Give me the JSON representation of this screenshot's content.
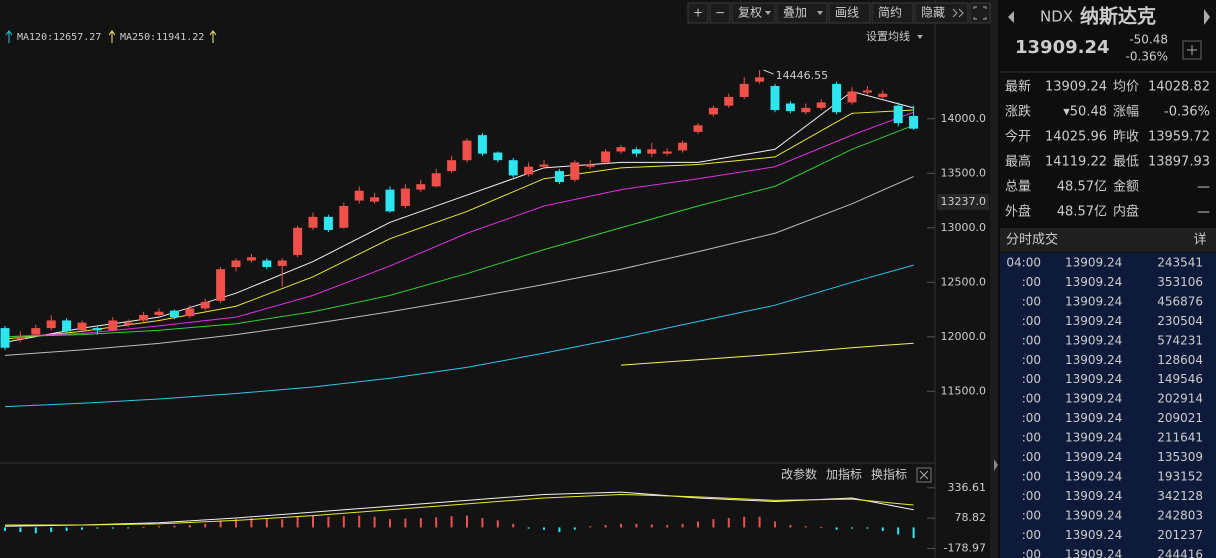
{
  "toolbar": {
    "buttons": [
      "+",
      "−",
      "复权",
      "叠加",
      "画线",
      "简约",
      "隐藏"
    ],
    "ma_settings": "设置均线"
  },
  "chart_data": {
    "type": "candlestick",
    "up_color": "#f0504a",
    "down_color": "#2ee6f0",
    "ylim": [
      10870,
      14860
    ],
    "yticks": [
      {
        "value": 14000,
        "label": "14000.0"
      },
      {
        "value": 13500,
        "label": "13500.0"
      },
      {
        "value": 13000,
        "label": "13000.0"
      },
      {
        "value": 12500,
        "label": "12500.0"
      },
      {
        "value": 12000,
        "label": "12000.0"
      },
      {
        "value": 11500,
        "label": "11500.0"
      }
    ],
    "price_marker": {
      "value": 13237,
      "label": "13237.0"
    },
    "open": [
      12080,
      11980,
      12020,
      12080,
      12150,
      12060,
      12080,
      12060,
      12110,
      12150,
      12200,
      12240,
      12190,
      12260,
      12330,
      12640,
      12700,
      12700,
      12650,
      12750,
      13000,
      13100,
      13000,
      13250,
      13240,
      13350,
      13200,
      13350,
      13380,
      13520,
      13620,
      13850,
      13690,
      13620,
      13490,
      13560,
      13520,
      13440,
      13560,
      13600,
      13700,
      13720,
      13680,
      13680,
      13710,
      13880,
      14040,
      14120,
      14200,
      14340,
      14300,
      14140,
      14060,
      14100,
      14320,
      14150,
      14240,
      14200,
      14120,
      14025.96
    ],
    "high": [
      12100,
      12050,
      12110,
      12200,
      12170,
      12150,
      12090,
      12180,
      12160,
      12230,
      12260,
      12250,
      12290,
      12350,
      12640,
      12720,
      12760,
      12720,
      12720,
      13020,
      13140,
      13120,
      13230,
      13380,
      13320,
      13380,
      13400,
      13440,
      13540,
      13660,
      13820,
      13870,
      13700,
      13640,
      13600,
      13620,
      13540,
      13620,
      13620,
      13720,
      13760,
      13740,
      13780,
      13730,
      13800,
      13960,
      14120,
      14230,
      14380,
      14446.55,
      14320,
      14160,
      14140,
      14180,
      14340,
      14290,
      14300,
      14260,
      14150,
      14119.22
    ],
    "low": [
      11880,
      11950,
      12000,
      12060,
      12030,
      12040,
      12020,
      12050,
      12090,
      12130,
      12180,
      12160,
      12170,
      12240,
      12310,
      12600,
      12680,
      12620,
      12460,
      12730,
      12980,
      12960,
      12990,
      13220,
      13220,
      13140,
      13180,
      13330,
      13370,
      13500,
      13600,
      13660,
      13600,
      13460,
      13470,
      13540,
      13400,
      13420,
      13540,
      13580,
      13680,
      13650,
      13650,
      13660,
      13690,
      13860,
      14020,
      14100,
      14180,
      14320,
      14060,
      14050,
      14040,
      14080,
      14040,
      14130,
      14220,
      14180,
      13930,
      13897.93
    ],
    "close": [
      11900,
      12000,
      12080,
      12150,
      12050,
      12130,
      12060,
      12150,
      12130,
      12200,
      12230,
      12180,
      12260,
      12320,
      12620,
      12700,
      12730,
      12640,
      12700,
      13000,
      13100,
      12980,
      13200,
      13340,
      13280,
      13150,
      13360,
      13400,
      13500,
      13620,
      13800,
      13680,
      13620,
      13480,
      13560,
      13580,
      13420,
      13600,
      13580,
      13700,
      13740,
      13680,
      13720,
      13700,
      13780,
      13940,
      14100,
      14200,
      14320,
      14380,
      14080,
      14070,
      14100,
      14150,
      14060,
      14250,
      14260,
      14230,
      13960,
      13909.24
    ],
    "ma_x": [
      0,
      5,
      10,
      15,
      20,
      25,
      30,
      35,
      40,
      45,
      50,
      55,
      59
    ],
    "ma_lines": [
      {
        "color": "#f2f2f2",
        "values": [
          11950,
          12080,
          12180,
          12400,
          12690,
          13050,
          13300,
          13550,
          13600,
          13600,
          13720,
          14250,
          14100
        ]
      },
      {
        "color": "#e8e832",
        "values": [
          11980,
          12050,
          12150,
          12280,
          12550,
          12900,
          13150,
          13450,
          13550,
          13580,
          13650,
          14050,
          14080
        ]
      },
      {
        "color": "#e030e0",
        "values": [
          12000,
          12030,
          12100,
          12180,
          12380,
          12650,
          12950,
          13200,
          13350,
          13450,
          13560,
          13850,
          14060
        ]
      },
      {
        "color": "#30d030",
        "values": [
          12000,
          12020,
          12060,
          12120,
          12230,
          12380,
          12580,
          12800,
          13000,
          13200,
          13380,
          13720,
          13940
        ]
      },
      {
        "color": "#bdbdbd",
        "values": [
          11830,
          11880,
          11940,
          12020,
          12120,
          12230,
          12350,
          12480,
          12620,
          12780,
          12950,
          13220,
          13470
        ]
      },
      {
        "name": "MA120:12657.27",
        "color": "#2bc8e8",
        "values": [
          11360,
          11390,
          11430,
          11480,
          11540,
          11620,
          11720,
          11850,
          11990,
          12140,
          12290,
          12500,
          12657.27
        ]
      },
      {
        "name": "MA250:11941.22",
        "color": "#f0f070",
        "values": [
          null,
          null,
          null,
          null,
          null,
          null,
          null,
          null,
          11740,
          11790,
          11840,
          11900,
          11941.22
        ]
      }
    ],
    "indicator": {
      "buttons": [
        "改参数",
        "加指标",
        "换指标"
      ],
      "ylim": [
        -260,
        420
      ],
      "yticks": [
        336.61,
        78.82,
        -178.97
      ],
      "hist": [
        -30,
        -40,
        -50,
        -40,
        -30,
        -20,
        -10,
        -10,
        -5,
        5,
        10,
        15,
        20,
        30,
        60,
        70,
        80,
        75,
        70,
        90,
        100,
        90,
        95,
        100,
        90,
        70,
        75,
        80,
        85,
        95,
        100,
        80,
        60,
        30,
        -10,
        -20,
        -40,
        -20,
        10,
        20,
        30,
        30,
        25,
        20,
        30,
        50,
        70,
        80,
        90,
        90,
        50,
        20,
        10,
        5,
        -20,
        -10,
        -10,
        -30,
        -60,
        -90
      ],
      "lines": [
        {
          "color": "#f2f2f2",
          "values": [
            10,
            20,
            40,
            80,
            130,
            180,
            230,
            280,
            300,
            250,
            220,
            250,
            150
          ]
        },
        {
          "color": "#e8e832",
          "values": [
            20,
            20,
            30,
            60,
            100,
            150,
            200,
            250,
            280,
            260,
            230,
            240,
            190
          ]
        }
      ]
    }
  },
  "header": {
    "code": "NDX",
    "name": "纳斯达克",
    "price": 13909.24,
    "change": -50.48,
    "change_pct": "-0.36%"
  },
  "quote": {
    "items": [
      {
        "label": "最新",
        "value": 13909.24,
        "color": "#2ddc4a"
      },
      {
        "label": "均价",
        "value": 14028.82,
        "color": "#ff4545"
      },
      {
        "label": "涨跌",
        "value": "▾50.48",
        "color": "#2ddc4a"
      },
      {
        "label": "涨幅",
        "value": "-0.36%",
        "color": "#2ddc4a"
      },
      {
        "label": "今开",
        "value": 14025.96,
        "color": "#ff4545"
      },
      {
        "label": "昨收",
        "value": 13959.72,
        "color": "#dddddd"
      },
      {
        "label": "最高",
        "value": 14119.22,
        "color": "#ff4545"
      },
      {
        "label": "最低",
        "value": 13897.93,
        "color": "#2ddc4a"
      },
      {
        "label": "总量",
        "value": "48.57亿",
        "color": "#dddddd"
      },
      {
        "label": "金额",
        "value": "—",
        "color": "#33d6e8"
      },
      {
        "label": "外盘",
        "value": "48.57亿",
        "color": "#ff4545"
      },
      {
        "label": "内盘",
        "value": "—",
        "color": "#2ddc4a"
      }
    ]
  },
  "trades": {
    "title": "分时成交",
    "detail": "详",
    "rows": [
      {
        "time": "04:00",
        "price": 13909.24,
        "volume": 243541
      },
      {
        "time": ":00",
        "price": 13909.24,
        "volume": 353106
      },
      {
        "time": ":00",
        "price": 13909.24,
        "volume": 456876
      },
      {
        "time": ":00",
        "price": 13909.24,
        "volume": 230504
      },
      {
        "time": ":00",
        "price": 13909.24,
        "volume": 574231
      },
      {
        "time": ":00",
        "price": 13909.24,
        "volume": 128604
      },
      {
        "time": ":00",
        "price": 13909.24,
        "volume": 149546
      },
      {
        "time": ":00",
        "price": 13909.24,
        "volume": 202914
      },
      {
        "time": ":00",
        "price": 13909.24,
        "volume": 209021
      },
      {
        "time": ":00",
        "price": 13909.24,
        "volume": 211641
      },
      {
        "time": ":00",
        "price": 13909.24,
        "volume": 135309
      },
      {
        "time": ":00",
        "price": 13909.24,
        "volume": 193152
      },
      {
        "time": ":00",
        "price": 13909.24,
        "volume": 342128
      },
      {
        "time": ":00",
        "price": 13909.24,
        "volume": 242803
      },
      {
        "time": ":00",
        "price": 13909.24,
        "volume": 201237
      },
      {
        "time": ":00",
        "price": 13909.24,
        "volume": 244416
      }
    ]
  }
}
